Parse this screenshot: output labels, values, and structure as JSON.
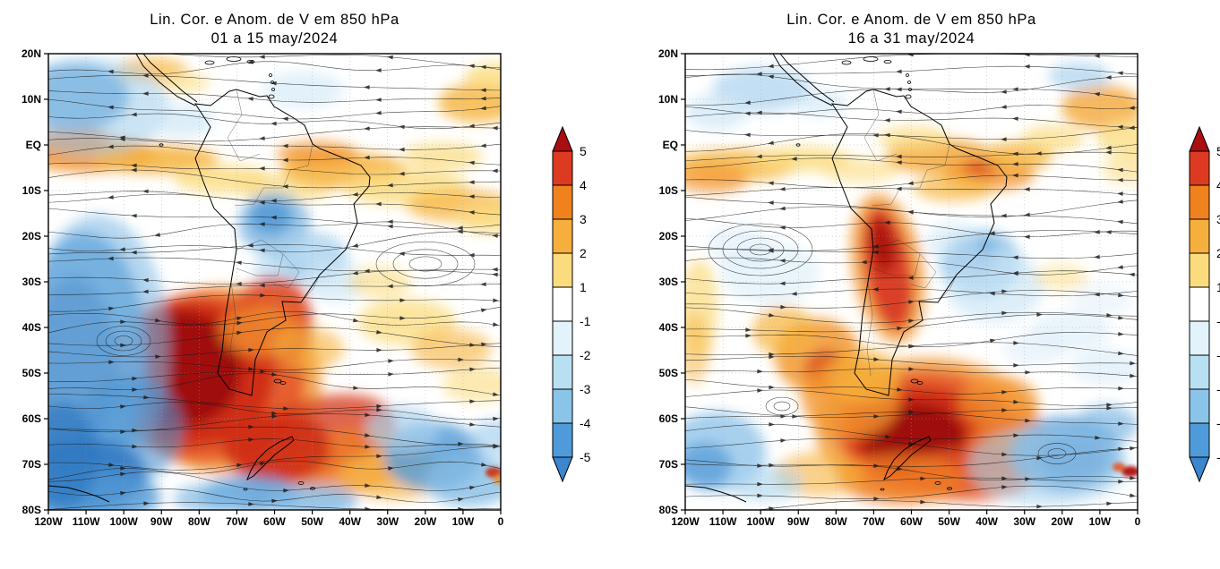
{
  "figure": {
    "panels": [
      {
        "title_line1": "Lin. Cor. e Anom. de V em 850 hPa",
        "title_line2": "01 a 15 may/2024",
        "y_ticks": [
          "20N",
          "10N",
          "EQ",
          "10S",
          "20S",
          "30S",
          "40S",
          "50S",
          "60S",
          "70S",
          "80S"
        ],
        "x_ticks": [
          "120W",
          "110W",
          "100W",
          "90W",
          "80W",
          "70W",
          "60W",
          "50W",
          "40W",
          "30W",
          "20W",
          "10W",
          "0"
        ]
      },
      {
        "title_line1": "Lin. Cor. e Anom. de V em 850 hPa",
        "title_line2": "16 a 31 may/2024",
        "y_ticks": [
          "20N",
          "10N",
          "EQ",
          "10S",
          "20S",
          "30S",
          "40S",
          "50S",
          "60S",
          "70S",
          "80S"
        ],
        "x_ticks": [
          "120W",
          "110W",
          "100W",
          "90W",
          "80W",
          "70W",
          "60W",
          "50W",
          "40W",
          "30W",
          "20W",
          "10W",
          "0"
        ]
      }
    ],
    "colorbar": {
      "tick_labels": [
        "5",
        "4",
        "3",
        "2",
        "1",
        "-1",
        "-2",
        "-3",
        "-4",
        "-5"
      ],
      "segment_colors": [
        "#DD3B21",
        "#F0821E",
        "#F6AE3C",
        "#FADC7E",
        "#FFFFFF",
        "#E2F3FB",
        "#B9DFF2",
        "#8AC4E8",
        "#4F9BD9"
      ],
      "triangle_top_color": "#AA0E10",
      "triangle_bottom_color": "#3A86CF"
    }
  },
  "chart_data": [
    {
      "type": "heatmap",
      "title": "Lin. Cor. e Anom. de V em 850 hPa",
      "subtitle": "01 a 15 may/2024",
      "variable": "850 hPa streamlines (Lin. Cor.) with meridional wind (V) anomaly shading",
      "region": "South America and adjacent Pacific/Atlantic oceans",
      "x_ticks": [
        "120W",
        "110W",
        "100W",
        "90W",
        "80W",
        "70W",
        "60W",
        "50W",
        "40W",
        "30W",
        "20W",
        "10W",
        "0"
      ],
      "y_ticks": [
        "20N",
        "10N",
        "EQ",
        "10S",
        "20S",
        "30S",
        "40S",
        "50S",
        "60S",
        "70S",
        "80S"
      ],
      "xlim_deg_lon": [
        -120,
        0
      ],
      "ylim_deg_lat": [
        -80,
        20
      ],
      "contour_levels": [
        -5,
        -4,
        -3,
        -2,
        -1,
        1,
        2,
        3,
        4,
        5
      ],
      "legend_position": "right colorbar",
      "grid": true,
      "features": [
        {
          "value": "> 5",
          "area": "SE Pacific into Patagonia and SW Atlantic (100W-55W, 35S-65S)",
          "description": "intense positive V anomaly (dark red core)"
        },
        {
          "value": "< -5",
          "area": "far SE Pacific (120W-102W, 28S-76S)",
          "description": "intense negative V anomaly (dark blue column)"
        },
        {
          "value": "-3",
          "area": "NE Pacific corner (120W-105W, 5N-20N)"
        },
        {
          "value": "2 to 3",
          "area": "equatorial East Pacific band (120W-85W, 5N-10S)"
        },
        {
          "value": "2 to 3",
          "area": "NE Brazil into tropical Atlantic (50W-0, EQ-15S)"
        },
        {
          "value": "-2 to -4",
          "area": "central Brazil (62W-48W, 10S-28S)"
        },
        {
          "value": "-3",
          "area": "South Atlantic / Antarctic sector (35W-0, 58S-75S) and 80W-45W near 72S-78S"
        },
        {
          "value": "closed anticyclonic circulation",
          "area": "subtropical South Atlantic near 20W 27S"
        },
        {
          "value": "cyclonic vortex",
          "area": "SE Pacific near 100W 43S"
        }
      ]
    },
    {
      "type": "heatmap",
      "title": "Lin. Cor. e Anom. de V em 850 hPa",
      "subtitle": "16 a 31 may/2024",
      "variable": "850 hPa streamlines (Lin. Cor.) with meridional wind (V) anomaly shading",
      "region": "South America and adjacent Pacific/Atlantic oceans",
      "x_ticks": [
        "120W",
        "110W",
        "100W",
        "90W",
        "80W",
        "70W",
        "60W",
        "50W",
        "40W",
        "30W",
        "20W",
        "10W",
        "0"
      ],
      "y_ticks": [
        "20N",
        "10N",
        "EQ",
        "10S",
        "20S",
        "30S",
        "40S",
        "50S",
        "60S",
        "70S",
        "80S"
      ],
      "xlim_deg_lon": [
        -120,
        0
      ],
      "ylim_deg_lat": [
        -80,
        20
      ],
      "contour_levels": [
        -5,
        -4,
        -3,
        -2,
        -1,
        1,
        2,
        3,
        4,
        5
      ],
      "legend_position": "right colorbar",
      "grid": true,
      "features": [
        {
          "value": "> 5",
          "area": "southern South America / SW Atlantic (78W-38W, 48S-75S)",
          "description": "intense positive V anomaly (dark red core)"
        },
        {
          "value": "3 to 5",
          "area": "narrow band along the Andes (72W-60W, 15S-40S)"
        },
        {
          "value": "3 to 4",
          "area": "SE Pacific (92W-78W, 40S-52S)"
        },
        {
          "value": "2 to 3",
          "area": "tropical band over Amazon and NE Brazil (70W-35W, 5N-10S)"
        },
        {
          "value": "-2 to -3",
          "area": "SE Brazil coast into Atlantic (48W-35W, 18S-30S)"
        },
        {
          "value": "-4",
          "area": "South Atlantic near 25W 67S with cyclonic vortex"
        },
        {
          "value": "-3",
          "area": "far SE Pacific corner (120W-105W, 55S-72S)"
        },
        {
          "value": "closed cyclonic circulation",
          "area": "SE Pacific near 100W 23S"
        }
      ]
    }
  ]
}
